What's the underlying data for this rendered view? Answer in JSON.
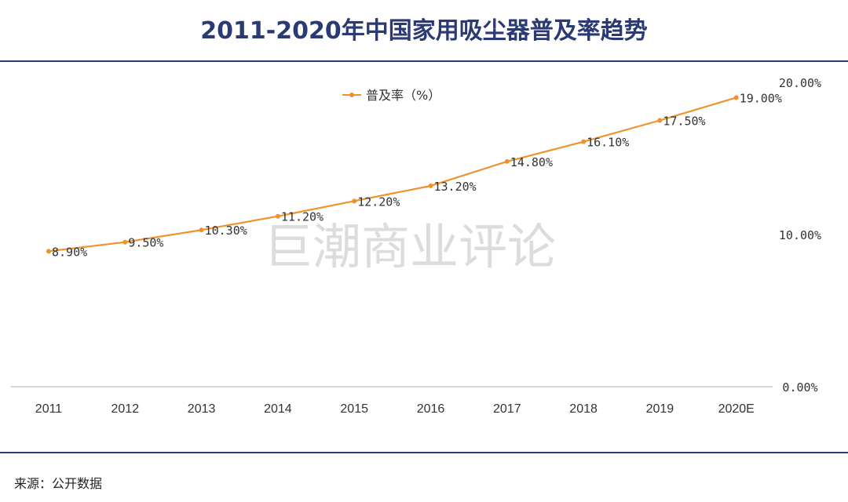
{
  "header": {
    "title": "2011-2020年中国家用吸尘器普及率趋势"
  },
  "footer": {
    "source": "来源：公开数据"
  },
  "watermark": "巨潮商业评论",
  "colors": {
    "title": "#2b3a73",
    "line": "#f0922b",
    "axis": "#c8c8c8"
  },
  "chart_data": {
    "type": "line",
    "title": "2011-2020年中国家用吸尘器普及率趋势",
    "categories": [
      "2011",
      "2012",
      "2013",
      "2014",
      "2015",
      "2016",
      "2017",
      "2018",
      "2019",
      "2020E"
    ],
    "series": [
      {
        "name": "普及率（%）",
        "values": [
          8.9,
          9.5,
          10.3,
          11.2,
          12.2,
          13.2,
          14.8,
          16.1,
          17.5,
          19.0
        ],
        "labels": [
          "8.90%",
          "9.50%",
          "10.30%",
          "11.20%",
          "12.20%",
          "13.20%",
          "14.80%",
          "16.10%",
          "17.50%",
          "19.00%"
        ]
      }
    ],
    "y_axis": {
      "position": "right",
      "ylim": [
        0,
        20
      ],
      "ticks": [
        0,
        10,
        20
      ],
      "tick_labels": [
        "0.00%",
        "10.00%",
        "20.00%"
      ]
    },
    "legend": {
      "position": "top-center"
    },
    "grid": false
  }
}
